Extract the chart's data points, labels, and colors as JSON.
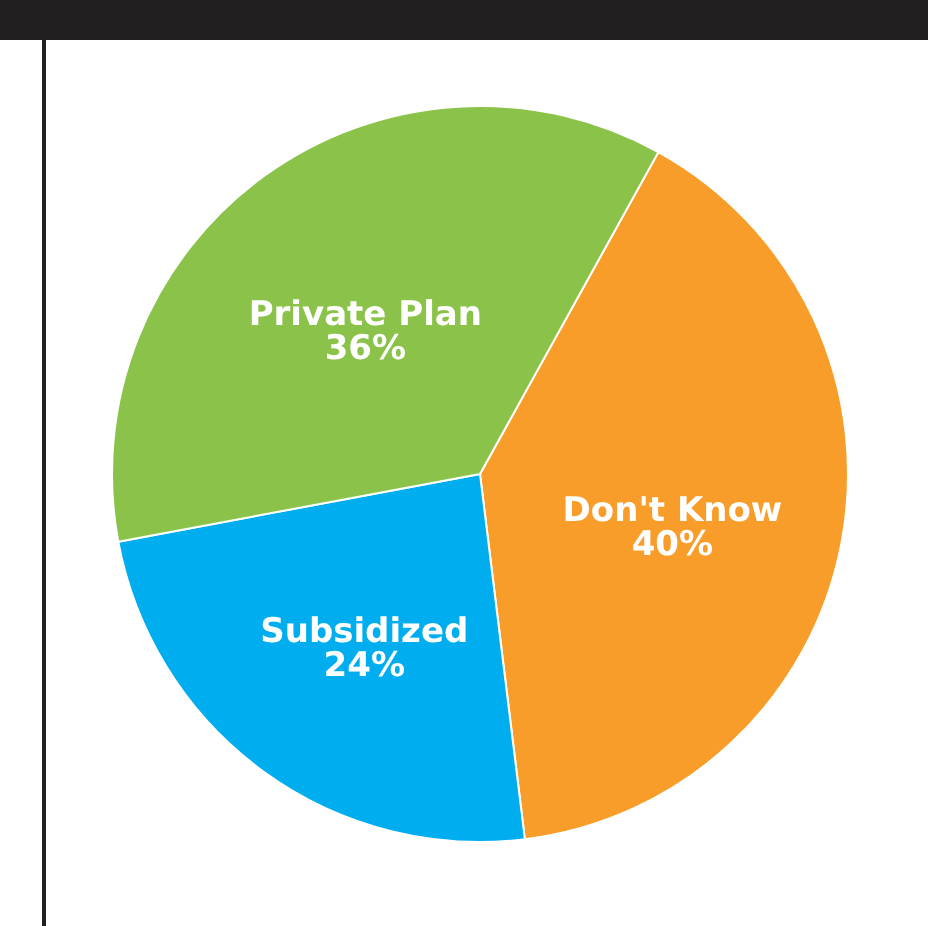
{
  "chart_data": {
    "type": "pie",
    "categories": [
      "Don't Know",
      "Subsidized",
      "Private Plan"
    ],
    "values": [
      40,
      24,
      36
    ],
    "value_labels": [
      "40%",
      "24%",
      "36%"
    ],
    "colors": [
      "#f89d29",
      "#00aeef",
      "#8bc34a"
    ]
  }
}
